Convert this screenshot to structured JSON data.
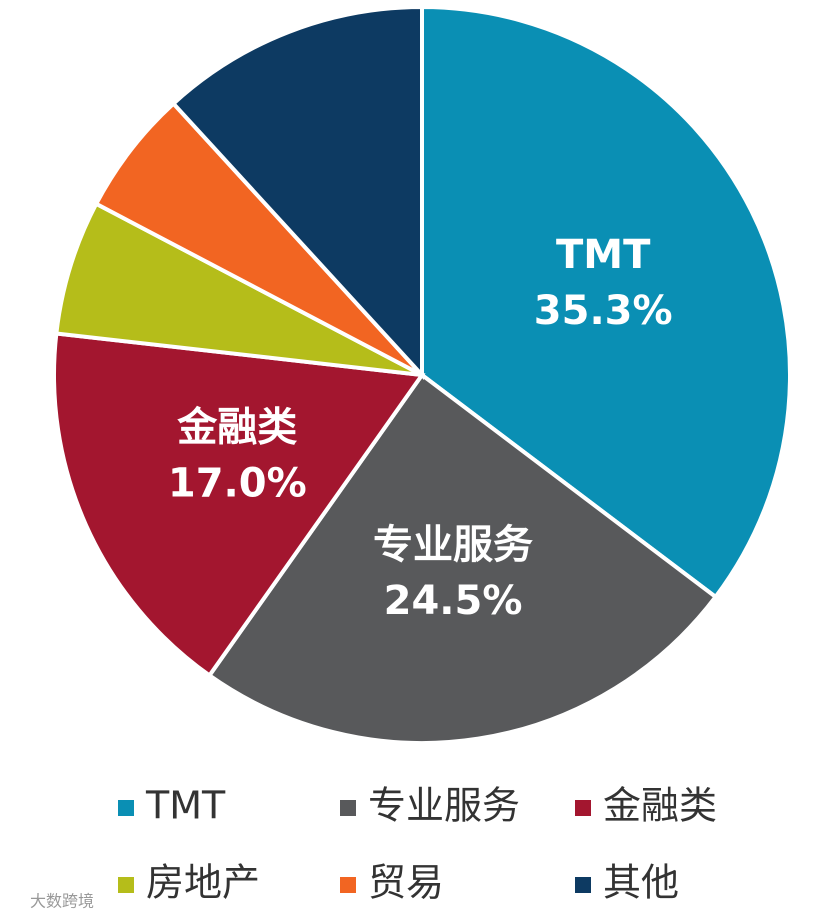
{
  "chart_data": {
    "type": "pie",
    "categories": [
      "TMT",
      "专业服务",
      "金融类",
      "房地产",
      "贸易",
      "其他"
    ],
    "values": [
      35.3,
      24.5,
      17.0,
      5.9,
      5.5,
      11.8
    ],
    "value_labels": [
      "35.3%",
      "24.5%",
      "17.0%",
      null,
      null,
      null
    ],
    "colors": [
      "#0a8fb4",
      "#58595b",
      "#a3162f",
      "#b5bd1a",
      "#f26522",
      "#0d3a62"
    ],
    "legend": "bottom"
  },
  "watermark": "大数跨境"
}
